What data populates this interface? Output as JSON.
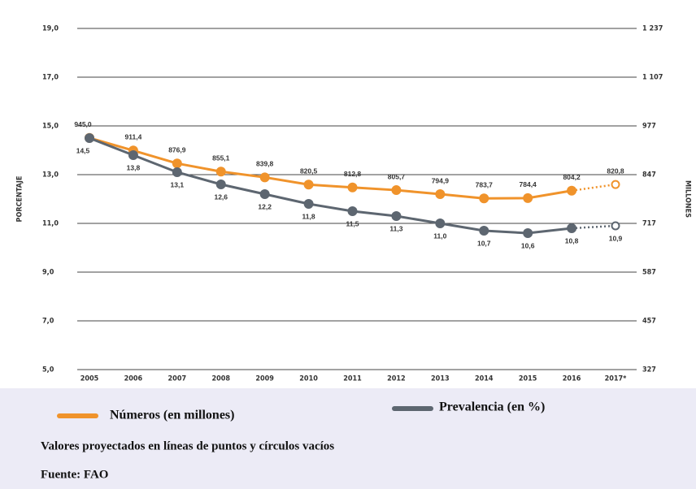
{
  "chart_data": {
    "type": "line",
    "categories": [
      "2005",
      "2006",
      "2007",
      "2008",
      "2009",
      "2010",
      "2011",
      "2012",
      "2013",
      "2014",
      "2015",
      "2016",
      "2017*"
    ],
    "series": [
      {
        "name": "Números (en millones)",
        "color": "#f0932b",
        "axis": "y2",
        "values": [
          945.0,
          911.4,
          876.9,
          855.1,
          839.8,
          820.5,
          812.8,
          805.7,
          794.9,
          783.7,
          784.4,
          804.2,
          820.8
        ],
        "value_labels": [
          "945,0",
          "911,4",
          "876,9",
          "855,1",
          "839,8",
          "820,5",
          "812,8",
          "805,7",
          "794,9",
          "783,7",
          "784,4",
          "804,2",
          "820,8"
        ]
      },
      {
        "name": "Prevalencia (en %)",
        "color": "#5d6670",
        "values": [
          14.5,
          13.8,
          13.1,
          12.6,
          12.2,
          11.8,
          11.5,
          11.3,
          11.0,
          10.7,
          10.6,
          10.8,
          10.9
        ],
        "value_labels": [
          "14,5",
          "13,8",
          "13,1",
          "12,6",
          "12,2",
          "11,8",
          "11,5",
          "11,3",
          "11,0",
          "10,7",
          "10,6",
          "10,8",
          "10,9"
        ]
      }
    ],
    "ylabel": "PORCENTAJE",
    "y2label": "MILLONES",
    "ylim": [
      5,
      19
    ],
    "yticks": [
      {
        "value": 5,
        "label": "5,0"
      },
      {
        "value": 7,
        "label": "7,0"
      },
      {
        "value": 9,
        "label": "9,0"
      },
      {
        "value": 11,
        "label": "11,0"
      },
      {
        "value": 13,
        "label": "13,0"
      },
      {
        "value": 15,
        "label": "15,0"
      },
      {
        "value": 17,
        "label": "17,0"
      },
      {
        "value": 19,
        "label": "19,0"
      }
    ],
    "y2lim": [
      327,
      1237
    ],
    "y2ticks": [
      327,
      457,
      587,
      717,
      847,
      977,
      {
        "value": 1107,
        "label": "1 107"
      },
      {
        "value": 1237,
        "label": "1 237"
      }
    ],
    "grid": true,
    "note": "Valores proyectados en líneas de puntos  y círculos vacíos",
    "source": "Fuente: FAO"
  }
}
